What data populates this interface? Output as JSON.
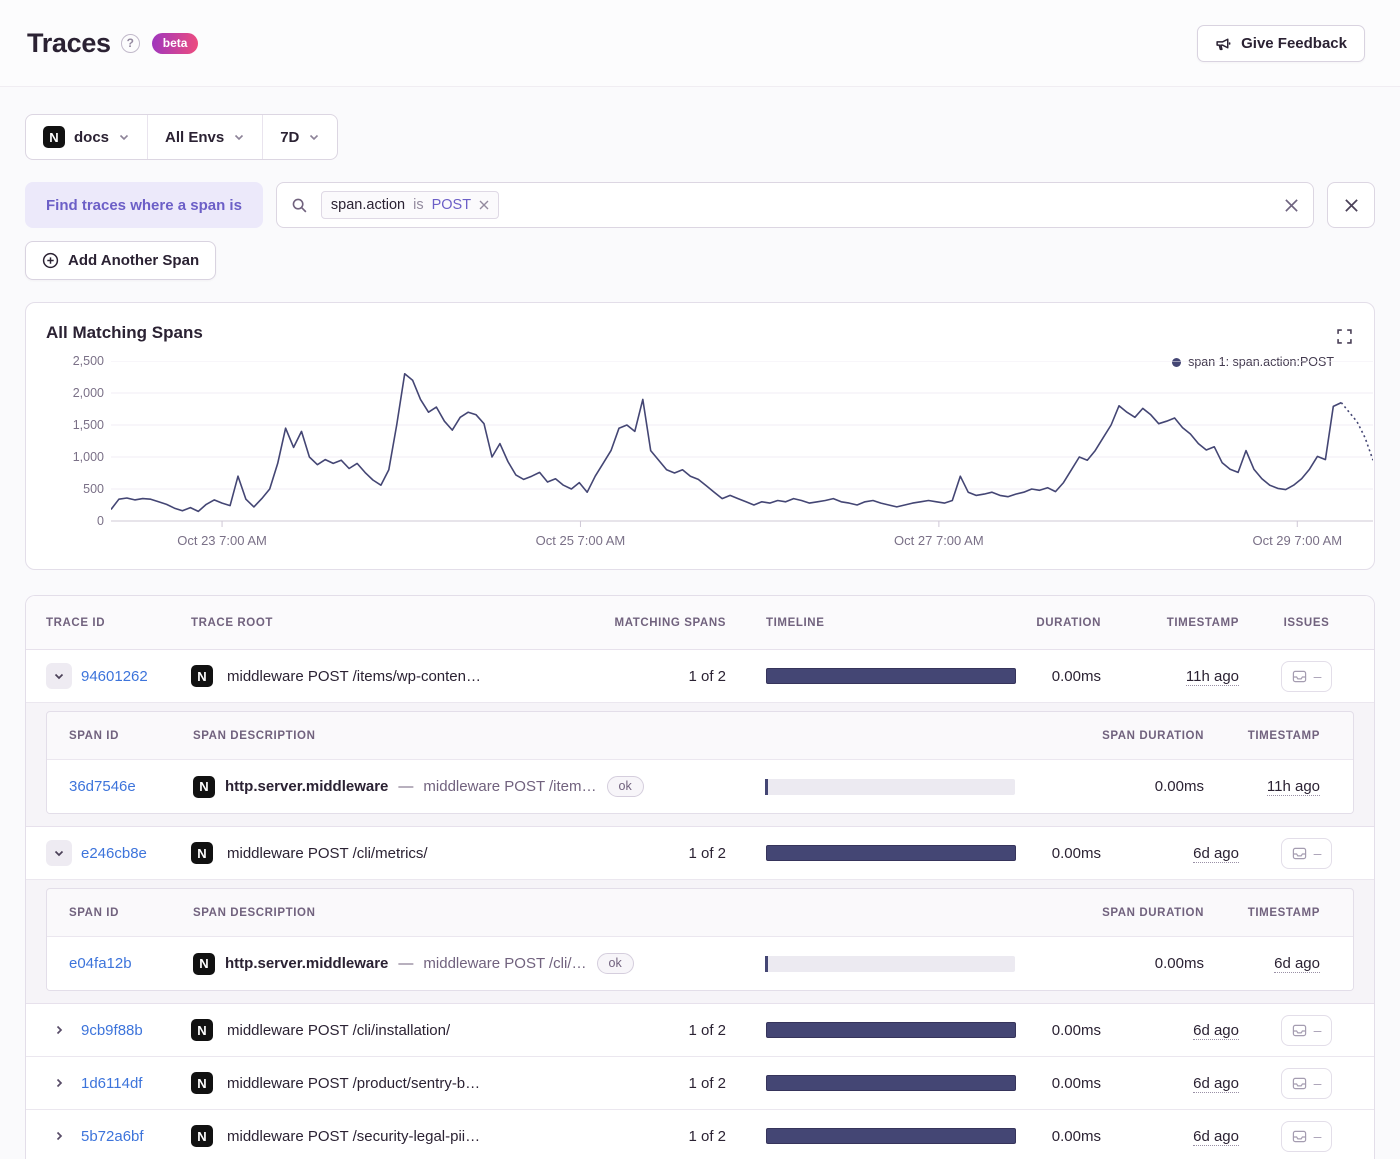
{
  "header": {
    "title": "Traces",
    "beta": "beta",
    "feedback": "Give Feedback"
  },
  "filters": {
    "project": "docs",
    "project_initial": "N",
    "environment": "All Envs",
    "period": "7D"
  },
  "query": {
    "builder_label": "Find traces where a span is",
    "token": {
      "key": "span.action",
      "operator": "is",
      "value": "POST"
    },
    "add_span": "Add Another Span"
  },
  "chart_data": {
    "type": "line",
    "title": "All Matching Spans",
    "xlabel": "",
    "ylabel": "",
    "ylim": [
      0,
      2500
    ],
    "grid": true,
    "legend_position": "top-right",
    "legend": [
      {
        "name": "span 1: span.action:POST",
        "color": "#444674"
      }
    ],
    "y_ticks": [
      "2,500",
      "2,000",
      "1,500",
      "1,000",
      "500",
      "0"
    ],
    "x_ticks": [
      {
        "label": "Oct 23 7:00 AM",
        "pos": 0.088
      },
      {
        "label": "Oct 25 7:00 AM",
        "pos": 0.372
      },
      {
        "label": "Oct 27 7:00 AM",
        "pos": 0.656
      },
      {
        "label": "Oct 29 7:00 AM",
        "pos": 0.94
      }
    ],
    "series": [
      {
        "name": "span 1: span.action:POST",
        "color": "#444674",
        "dashed_tail_points": 5,
        "values": [
          180,
          340,
          360,
          330,
          350,
          340,
          300,
          260,
          200,
          160,
          210,
          150,
          260,
          330,
          280,
          240,
          700,
          340,
          220,
          350,
          500,
          900,
          1450,
          1150,
          1400,
          1000,
          880,
          960,
          900,
          950,
          820,
          900,
          760,
          640,
          560,
          800,
          1500,
          2300,
          2200,
          1900,
          1700,
          1780,
          1560,
          1420,
          1620,
          1700,
          1660,
          1520,
          1000,
          1210,
          930,
          720,
          650,
          700,
          760,
          610,
          660,
          560,
          500,
          600,
          450,
          700,
          900,
          1100,
          1450,
          1500,
          1400,
          1900,
          1100,
          950,
          800,
          750,
          800,
          700,
          650,
          550,
          450,
          350,
          400,
          350,
          300,
          250,
          300,
          280,
          320,
          300,
          350,
          320,
          280,
          300,
          320,
          350,
          300,
          280,
          250,
          300,
          320,
          280,
          250,
          220,
          250,
          280,
          300,
          320,
          300,
          280,
          320,
          700,
          450,
          400,
          420,
          450,
          400,
          380,
          420,
          450,
          500,
          480,
          520,
          460,
          600,
          800,
          1000,
          950,
          1100,
          1300,
          1500,
          1800,
          1700,
          1620,
          1760,
          1660,
          1520,
          1560,
          1610,
          1460,
          1360,
          1210,
          1110,
          1160,
          910,
          810,
          760,
          1100,
          810,
          660,
          560,
          510,
          490,
          560,
          660,
          810,
          1010,
          960,
          1790,
          1850,
          1700,
          1550,
          1300,
          950
        ]
      }
    ]
  },
  "table": {
    "columns": [
      "Trace ID",
      "Trace Root",
      "Matching Spans",
      "Timeline",
      "Duration",
      "Timestamp",
      "Issues"
    ],
    "span_columns": [
      "Span ID",
      "Span Description",
      "Span Duration",
      "Timestamp"
    ],
    "issues_dash": "–",
    "span_sep": "—",
    "rows": [
      {
        "trace_id": "94601262",
        "trace_root": "middleware POST /items/wp-conten…",
        "matching_spans": "1 of 2",
        "duration": "0.00ms",
        "timestamp": "11h ago",
        "expanded": true,
        "spans": [
          {
            "span_id": "36d7546e",
            "op": "http.server.middleware",
            "description": "middleware POST /item…",
            "status": "ok",
            "duration": "0.00ms",
            "timestamp": "11h ago"
          }
        ]
      },
      {
        "trace_id": "e246cb8e",
        "trace_root": "middleware POST /cli/metrics/",
        "matching_spans": "1 of 2",
        "duration": "0.00ms",
        "timestamp": "6d ago",
        "expanded": true,
        "spans": [
          {
            "span_id": "e04fa12b",
            "op": "http.server.middleware",
            "description": "middleware POST /cli/…",
            "status": "ok",
            "duration": "0.00ms",
            "timestamp": "6d ago"
          }
        ]
      },
      {
        "trace_id": "9cb9f88b",
        "trace_root": "middleware POST /cli/installation/",
        "matching_spans": "1 of 2",
        "duration": "0.00ms",
        "timestamp": "6d ago",
        "expanded": false
      },
      {
        "trace_id": "1d6114df",
        "trace_root": "middleware POST /product/sentry-b…",
        "matching_spans": "1 of 2",
        "duration": "0.00ms",
        "timestamp": "6d ago",
        "expanded": false
      },
      {
        "trace_id": "5b72a6bf",
        "trace_root": "middleware POST /security-legal-pii…",
        "matching_spans": "1 of 2",
        "duration": "0.00ms",
        "timestamp": "6d ago",
        "expanded": false
      }
    ]
  }
}
